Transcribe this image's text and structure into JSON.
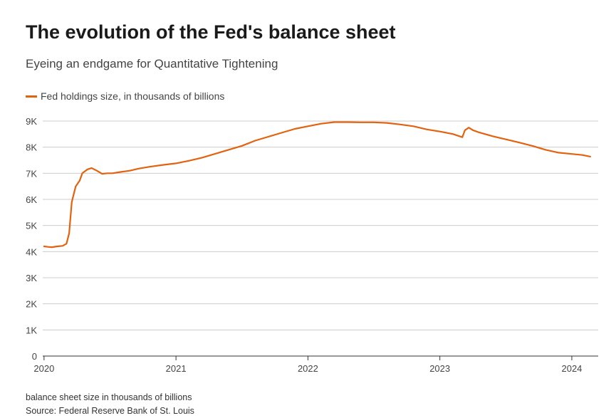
{
  "title": "The evolution of the Fed's balance sheet",
  "subtitle": "Eyeing an endgame for Quantitative Tightening",
  "note": "balance sheet size in thousands of billions",
  "source": "Source: Federal Reserve Bank of St. Louis",
  "colors": {
    "series": "#e2620f",
    "grid": "#cccccc",
    "axis": "#333333"
  },
  "chart_data": {
    "type": "line",
    "title": "The evolution of the Fed's balance sheet",
    "subtitle": "Eyeing an endgame for Quantitative Tightening",
    "xlabel": "",
    "ylabel": "",
    "ylim": [
      0,
      9000
    ],
    "xlim": [
      2019.99,
      2024.2
    ],
    "grid": true,
    "legend_position": "top-left",
    "y_ticks": [
      0,
      1000,
      2000,
      3000,
      4000,
      5000,
      6000,
      7000,
      8000,
      9000
    ],
    "y_tick_labels": [
      "0",
      "1K",
      "2K",
      "3K",
      "4K",
      "5K",
      "6K",
      "7K",
      "8K",
      "9K"
    ],
    "x_ticks": [
      2020,
      2021,
      2022,
      2023,
      2024
    ],
    "x_tick_labels": [
      "2020",
      "2021",
      "2022",
      "2023",
      "2024"
    ],
    "series": [
      {
        "name": "Fed holdings size, in thousands of billions",
        "x": [
          2020.0,
          2020.03,
          2020.06,
          2020.1,
          2020.14,
          2020.17,
          2020.19,
          2020.21,
          2020.24,
          2020.27,
          2020.29,
          2020.33,
          2020.36,
          2020.4,
          2020.44,
          2020.48,
          2020.52,
          2020.58,
          2020.65,
          2020.72,
          2020.8,
          2020.9,
          2021.0,
          2021.1,
          2021.2,
          2021.3,
          2021.4,
          2021.5,
          2021.6,
          2021.7,
          2021.8,
          2021.9,
          2022.0,
          2022.1,
          2022.2,
          2022.25,
          2022.3,
          2022.4,
          2022.5,
          2022.6,
          2022.7,
          2022.8,
          2022.9,
          2023.0,
          2023.1,
          2023.17,
          2023.19,
          2023.22,
          2023.25,
          2023.3,
          2023.4,
          2023.5,
          2023.6,
          2023.7,
          2023.8,
          2023.9,
          2024.0,
          2024.08,
          2024.14
        ],
        "values": [
          4200,
          4180,
          4170,
          4200,
          4220,
          4300,
          4700,
          5900,
          6500,
          6720,
          7000,
          7150,
          7200,
          7100,
          6980,
          7000,
          7000,
          7050,
          7100,
          7180,
          7250,
          7320,
          7380,
          7480,
          7600,
          7750,
          7900,
          8050,
          8250,
          8400,
          8550,
          8700,
          8800,
          8900,
          8960,
          8960,
          8960,
          8950,
          8950,
          8930,
          8870,
          8800,
          8680,
          8600,
          8500,
          8380,
          8650,
          8750,
          8650,
          8560,
          8420,
          8300,
          8180,
          8050,
          7900,
          7790,
          7740,
          7700,
          7640
        ]
      }
    ]
  }
}
